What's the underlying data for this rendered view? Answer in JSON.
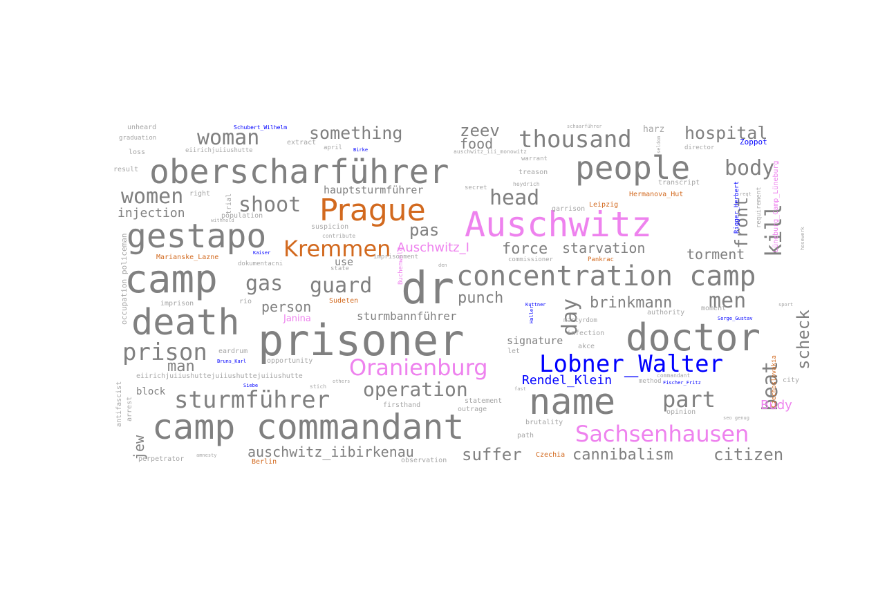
{
  "colors": {
    "gray": "#808080",
    "light_gray": "#a6a6a6",
    "orange": "#d2691e",
    "pink": "#ee82ee",
    "blue": "#0000ff"
  },
  "words": [
    {
      "text": "Auschwitz",
      "c": "pink"
    },
    {
      "text": "prisoner",
      "c": "gray"
    },
    {
      "text": "oberscharführer",
      "c": "gray"
    },
    {
      "text": "camp commandant",
      "c": "gray"
    },
    {
      "text": "doctor",
      "c": "gray"
    },
    {
      "text": "camp",
      "c": "gray"
    },
    {
      "text": "death",
      "c": "gray"
    },
    {
      "text": "gestapo",
      "c": "gray"
    },
    {
      "text": "name",
      "c": "gray"
    },
    {
      "text": "people",
      "c": "gray"
    },
    {
      "text": "dr",
      "c": "gray"
    },
    {
      "text": "concentration camp",
      "c": "gray"
    },
    {
      "text": "Prague",
      "c": "orange"
    },
    {
      "text": "Lobner_Walter",
      "c": "blue"
    },
    {
      "text": "Oranienburg",
      "c": "pink"
    },
    {
      "text": "Sachsenhausen",
      "c": "pink"
    },
    {
      "text": "sturmführer",
      "c": "gray"
    },
    {
      "text": "thousand",
      "c": "gray"
    },
    {
      "text": "Kremmen",
      "c": "orange"
    },
    {
      "text": "woman",
      "c": "gray"
    },
    {
      "text": "prison",
      "c": "gray"
    },
    {
      "text": "women",
      "c": "gray"
    },
    {
      "text": "shoot",
      "c": "gray"
    },
    {
      "text": "gas",
      "c": "gray"
    },
    {
      "text": "guard",
      "c": "gray"
    },
    {
      "text": "body",
      "c": "gray"
    },
    {
      "text": "head",
      "c": "gray"
    },
    {
      "text": "part",
      "c": "gray"
    },
    {
      "text": "operation",
      "c": "gray"
    },
    {
      "text": "something",
      "c": "gray"
    },
    {
      "text": "hospital",
      "c": "gray"
    },
    {
      "text": "zeev",
      "c": "gray"
    },
    {
      "text": "food",
      "c": "gray"
    },
    {
      "text": "kill",
      "c": "gray"
    },
    {
      "text": "front",
      "c": "gray"
    },
    {
      "text": "men",
      "c": "gray"
    },
    {
      "text": "day",
      "c": "gray"
    },
    {
      "text": "beat",
      "c": "gray"
    },
    {
      "text": "scheck",
      "c": "gray"
    },
    {
      "text": "suffer",
      "c": "gray"
    },
    {
      "text": "cannibalism",
      "c": "gray"
    },
    {
      "text": "citizen",
      "c": "gray"
    },
    {
      "text": "auschwitz_iibirkenau",
      "c": "gray"
    },
    {
      "text": "brinkmann",
      "c": "gray"
    },
    {
      "text": "force",
      "c": "gray"
    },
    {
      "text": "starvation",
      "c": "gray"
    },
    {
      "text": "torment",
      "c": "gray"
    },
    {
      "text": "punch",
      "c": "gray"
    },
    {
      "text": "pas",
      "c": "gray"
    },
    {
      "text": "man",
      "c": "gray"
    },
    {
      "text": "person",
      "c": "gray"
    },
    {
      "text": "sturmbannführer",
      "c": "gray"
    },
    {
      "text": "Auschwitz_I",
      "c": "pink"
    },
    {
      "text": "Rendel_Klein",
      "c": "blue"
    },
    {
      "text": "Budy",
      "c": "pink"
    },
    {
      "text": "Janina",
      "c": "pink"
    },
    {
      "text": "injection",
      "c": "gray"
    },
    {
      "text": "jew",
      "c": "gray"
    },
    {
      "text": "use",
      "c": "gray"
    },
    {
      "text": "hauptsturmführer",
      "c": "gray"
    },
    {
      "text": "signature",
      "c": "gray"
    },
    {
      "text": "block",
      "c": "gray"
    },
    {
      "text": "Hermanova_Hut",
      "c": "orange"
    },
    {
      "text": "Marianske_Lazne",
      "c": "orange"
    },
    {
      "text": "Sudeten",
      "c": "orange"
    },
    {
      "text": "Leipzig",
      "c": "orange"
    },
    {
      "text": "Pankrac",
      "c": "orange"
    },
    {
      "text": "Berlin",
      "c": "orange"
    },
    {
      "text": "Czechia",
      "c": "orange"
    },
    {
      "text": "Czechoslovakia",
      "c": "orange"
    },
    {
      "text": "Buchenwald",
      "c": "pink"
    },
    {
      "text": "Zoppot",
      "c": "blue"
    },
    {
      "text": "Schubert_Wilhelm",
      "c": "blue"
    },
    {
      "text": "Bruns_Karl",
      "c": "blue"
    },
    {
      "text": "Sorge_Gustav",
      "c": "blue"
    },
    {
      "text": "Fischer_Fritz",
      "c": "blue"
    },
    {
      "text": "Rigger_Herbert",
      "c": "blue"
    },
    {
      "text": "Kaiser",
      "c": "blue"
    },
    {
      "text": "Siebe",
      "c": "blue"
    },
    {
      "text": "Birke",
      "c": "blue"
    },
    {
      "text": "Haller",
      "c": "blue"
    },
    {
      "text": "Kuttner",
      "c": "blue"
    },
    {
      "text": "Lüneburg_Camp_Lüneburg",
      "c": "pink"
    },
    {
      "text": "unheard",
      "c": "light_gray"
    },
    {
      "text": "graduation",
      "c": "light_gray"
    },
    {
      "text": "loss",
      "c": "light_gray"
    },
    {
      "text": "result",
      "c": "light_gray"
    },
    {
      "text": "eiirichjuiiushutte",
      "c": "light_gray"
    },
    {
      "text": "extract",
      "c": "light_gray"
    },
    {
      "text": "april",
      "c": "light_gray"
    },
    {
      "text": "auschwitz_iii_monowitz",
      "c": "light_gray"
    },
    {
      "text": "warrant",
      "c": "light_gray"
    },
    {
      "text": "director",
      "c": "light_gray"
    },
    {
      "text": "harz",
      "c": "light_gray"
    },
    {
      "text": "schaarführer",
      "c": "light_gray"
    },
    {
      "text": "right",
      "c": "light_gray"
    },
    {
      "text": "treason",
      "c": "light_gray"
    },
    {
      "text": "heydrich",
      "c": "light_gray"
    },
    {
      "text": "garrison",
      "c": "light_gray"
    },
    {
      "text": "transcript",
      "c": "light_gray"
    },
    {
      "text": "secret",
      "c": "light_gray"
    },
    {
      "text": "population",
      "c": "light_gray"
    },
    {
      "text": "suspicion",
      "c": "light_gray"
    },
    {
      "text": "contribute",
      "c": "light_gray"
    },
    {
      "text": "imprisonment",
      "c": "light_gray"
    },
    {
      "text": "state",
      "c": "light_gray"
    },
    {
      "text": "dokumentacni",
      "c": "light_gray"
    },
    {
      "text": "commissioner",
      "c": "light_gray"
    },
    {
      "text": "imprison",
      "c": "light_gray"
    },
    {
      "text": "rio",
      "c": "light_gray"
    },
    {
      "text": "martyrdom",
      "c": "light_gray"
    },
    {
      "text": "authority",
      "c": "light_gray"
    },
    {
      "text": "moment",
      "c": "light_gray"
    },
    {
      "text": "infection",
      "c": "light_gray"
    },
    {
      "text": "akce",
      "c": "light_gray"
    },
    {
      "text": "eardrum",
      "c": "light_gray"
    },
    {
      "text": "opportunity",
      "c": "light_gray"
    },
    {
      "text": "let",
      "c": "light_gray"
    },
    {
      "text": "eiirichjuiiushuttejuiiushuttejuiiushutte",
      "c": "light_gray"
    },
    {
      "text": "stich",
      "c": "light_gray"
    },
    {
      "text": "others",
      "c": "light_gray"
    },
    {
      "text": "firsthand",
      "c": "light_gray"
    },
    {
      "text": "statement",
      "c": "light_gray"
    },
    {
      "text": "outrage",
      "c": "light_gray"
    },
    {
      "text": "method",
      "c": "light_gray"
    },
    {
      "text": "commandant",
      "c": "light_gray"
    },
    {
      "text": "opinion",
      "c": "light_gray"
    },
    {
      "text": "brutality",
      "c": "light_gray"
    },
    {
      "text": "path",
      "c": "light_gray"
    },
    {
      "text": "perpetrator",
      "c": "light_gray"
    },
    {
      "text": "observation",
      "c": "light_gray"
    },
    {
      "text": "requirement",
      "c": "light_gray"
    },
    {
      "text": "city",
      "c": "light_gray"
    },
    {
      "text": "occupation policeman",
      "c": "light_gray"
    },
    {
      "text": "antifascist",
      "c": "light_gray"
    },
    {
      "text": "arrest",
      "c": "light_gray"
    },
    {
      "text": "trial",
      "c": "light_gray"
    },
    {
      "text": "amnesty",
      "c": "light_gray"
    },
    {
      "text": "sport",
      "c": "light_gray"
    },
    {
      "text": "seo genug",
      "c": "light_gray"
    },
    {
      "text": "hosewerk",
      "c": "light_gray"
    },
    {
      "text": "den",
      "c": "light_gray"
    },
    {
      "text": "fast",
      "c": "light_gray"
    },
    {
      "text": "seldom",
      "c": "light_gray"
    },
    {
      "text": "withhold",
      "c": "light_gray"
    },
    {
      "text": "reqt",
      "c": "light_gray"
    }
  ]
}
